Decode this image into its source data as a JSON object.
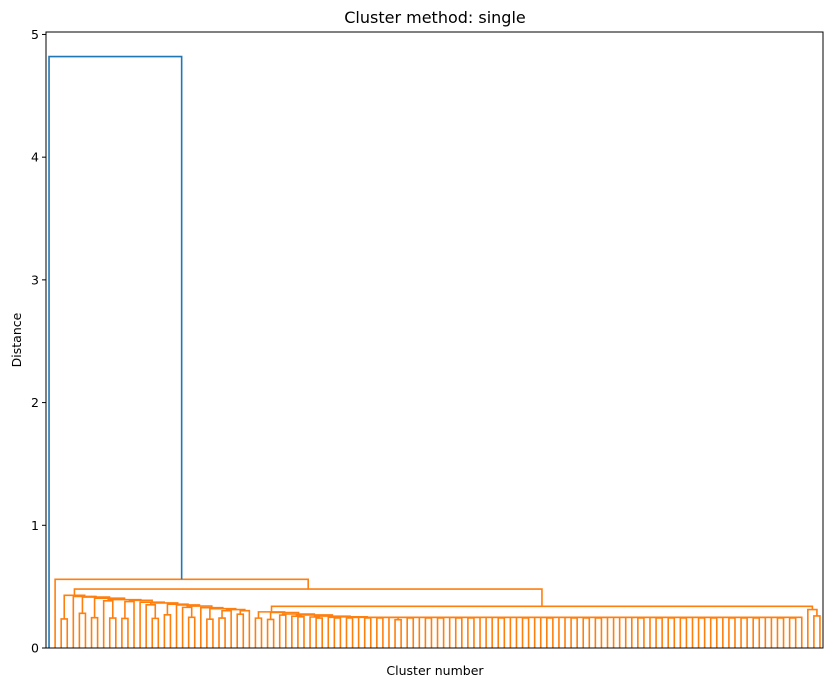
{
  "chart_data": {
    "type": "dendrogram",
    "title": "Cluster method: single",
    "xlabel": "Cluster number",
    "ylabel": "Distance",
    "ylim": [
      0,
      5.02
    ],
    "yticks": [
      0,
      1,
      2,
      3,
      4,
      5
    ],
    "xticks_shown": false,
    "colors": {
      "above_threshold": "#1f77b4",
      "cluster": "#ff7f0e"
    },
    "leaf_count": 128,
    "root_merge_distance": 4.82,
    "second_level_merge_distance": 0.56,
    "typical_merge_distance_range": [
      0.23,
      0.48
    ]
  }
}
